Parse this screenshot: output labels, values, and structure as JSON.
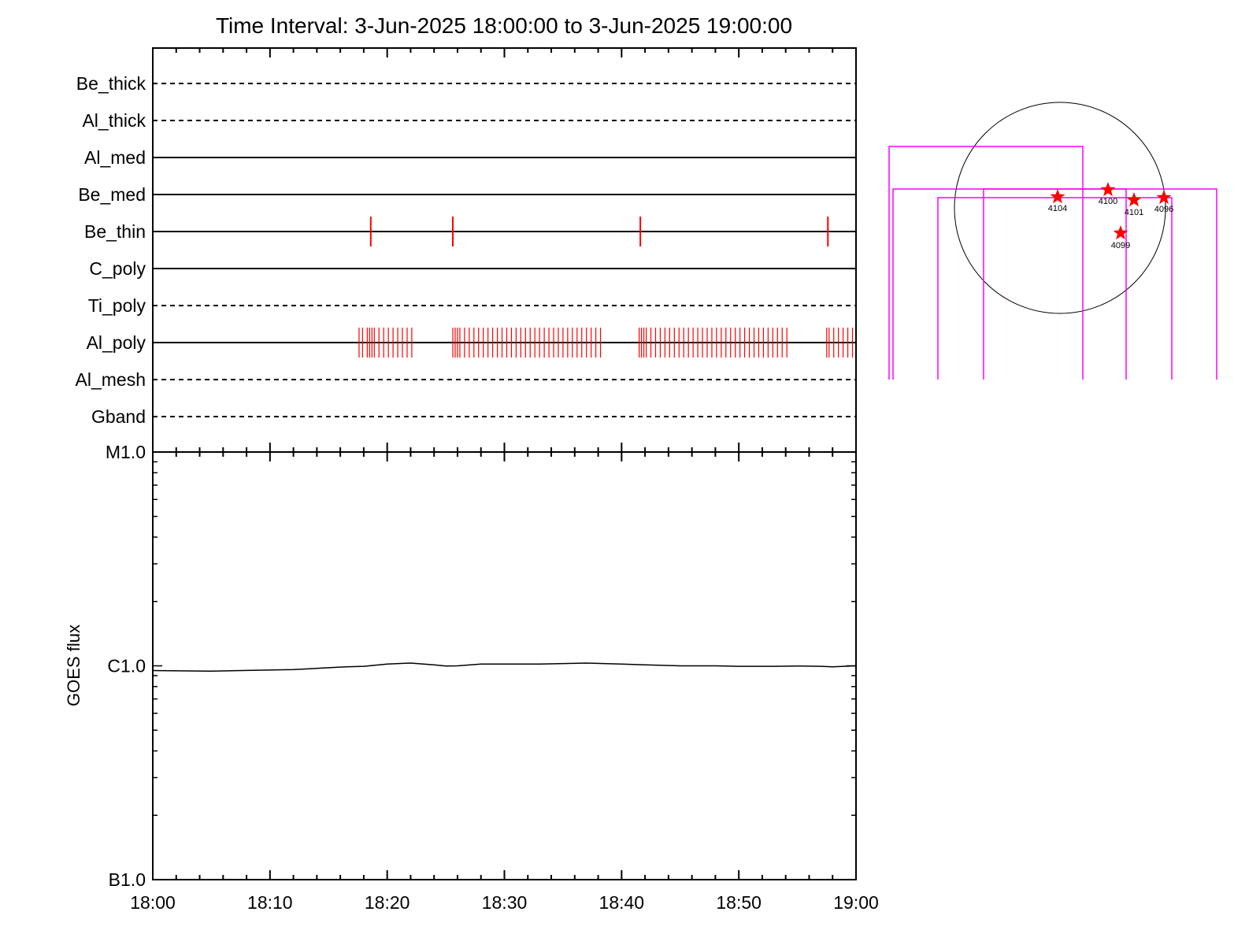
{
  "title": "Time Interval:  3-Jun-2025 18:00:00 to  3-Jun-2025 19:00:00",
  "chart_data": [
    {
      "type": "line",
      "description_panel": "channel-status",
      "time_axis": {
        "start": "18:00",
        "end": "19:00",
        "tick_labels": [
          "18:00",
          "18:10",
          "18:20",
          "18:30",
          "18:40",
          "18:50",
          "19:00"
        ]
      },
      "channels": [
        {
          "name": "Be_thick",
          "style": "dashed",
          "events": []
        },
        {
          "name": "Al_thick",
          "style": "dashed",
          "events": []
        },
        {
          "name": "Al_med",
          "style": "solid",
          "events": []
        },
        {
          "name": "Be_med",
          "style": "solid",
          "events": []
        },
        {
          "name": "Be_thin",
          "style": "solid",
          "events": [
            "18:18.6",
            "18:25.6",
            "18:41.6",
            "18:57.6"
          ]
        },
        {
          "name": "C_poly",
          "style": "solid",
          "events": []
        },
        {
          "name": "Ti_poly",
          "style": "dashed",
          "events": []
        },
        {
          "name": "Al_poly",
          "style": "solid",
          "events": "dense"
        },
        {
          "name": "Al_mesh",
          "style": "dashed",
          "events": []
        },
        {
          "name": "Gband",
          "style": "dashed",
          "events": []
        }
      ],
      "al_poly_event_minutes": [
        17.6,
        17.9,
        18.3,
        18.5,
        18.7,
        18.9,
        19.3,
        19.7,
        20.1,
        20.5,
        20.9,
        21.3,
        21.7,
        22.1,
        25.6,
        25.8,
        26.0,
        26.2,
        26.6,
        27.0,
        27.4,
        27.8,
        28.2,
        28.6,
        29.0,
        29.4,
        29.8,
        30.2,
        30.6,
        31.0,
        31.4,
        31.8,
        32.2,
        32.6,
        33.0,
        33.4,
        33.8,
        34.2,
        34.6,
        35.0,
        35.4,
        35.8,
        36.2,
        36.6,
        37.0,
        37.4,
        37.8,
        38.2,
        41.5,
        41.7,
        41.9,
        42.1,
        42.5,
        42.9,
        43.3,
        43.7,
        44.1,
        44.5,
        44.9,
        45.3,
        45.7,
        46.1,
        46.5,
        46.9,
        47.3,
        47.7,
        48.1,
        48.5,
        48.9,
        49.3,
        49.7,
        50.1,
        50.5,
        50.9,
        51.3,
        51.7,
        52.1,
        52.5,
        52.9,
        53.3,
        53.7,
        54.1,
        57.5,
        57.7,
        58.1,
        58.5,
        58.9,
        59.3,
        59.7
      ],
      "colors": {
        "events": "#ff0000",
        "lines": "#000000"
      }
    },
    {
      "type": "line",
      "ylabel": "GOES flux",
      "yscale": "log",
      "ylim": [
        1e-07,
        1e-05
      ],
      "y_tick_labels": [
        {
          "value": 1e-05,
          "label": "M1.0"
        },
        {
          "value": 1e-06,
          "label": "C1.0"
        },
        {
          "value": 1e-07,
          "label": "B1.0"
        }
      ],
      "x_tick_labels": [
        "18:00",
        "18:10",
        "18:20",
        "18:30",
        "18:40",
        "18:50",
        "19:00"
      ],
      "series": [
        {
          "x_minutes": [
            0,
            5,
            7.5,
            12,
            15,
            16.5,
            18,
            20,
            22,
            24,
            25,
            26,
            28,
            30,
            33,
            37,
            40,
            42,
            45,
            48,
            50,
            53,
            55,
            57,
            58,
            59,
            60
          ],
          "values": [
            9.5e-07,
            9.45e-07,
            9.5e-07,
            9.6e-07,
            9.8e-07,
            9.9e-07,
            9.95e-07,
            1.02e-06,
            1.03e-06,
            1.01e-06,
            9.98e-07,
            1e-06,
            1.02e-06,
            1.02e-06,
            1.02e-06,
            1.03e-06,
            1.02e-06,
            1.01e-06,
            1e-06,
            1e-06,
            9.95e-07,
            9.95e-07,
            9.98e-07,
            9.95e-07,
            9.9e-07,
            9.95e-07,
            1e-06
          ]
        }
      ]
    }
  ],
  "solar_disk": {
    "active_regions": [
      "4104",
      "4100",
      "4101",
      "4096",
      "4099"
    ],
    "colors": {
      "stars": "#ff0000",
      "fov_boxes": "#ff00ff",
      "limb": "#000000"
    }
  }
}
